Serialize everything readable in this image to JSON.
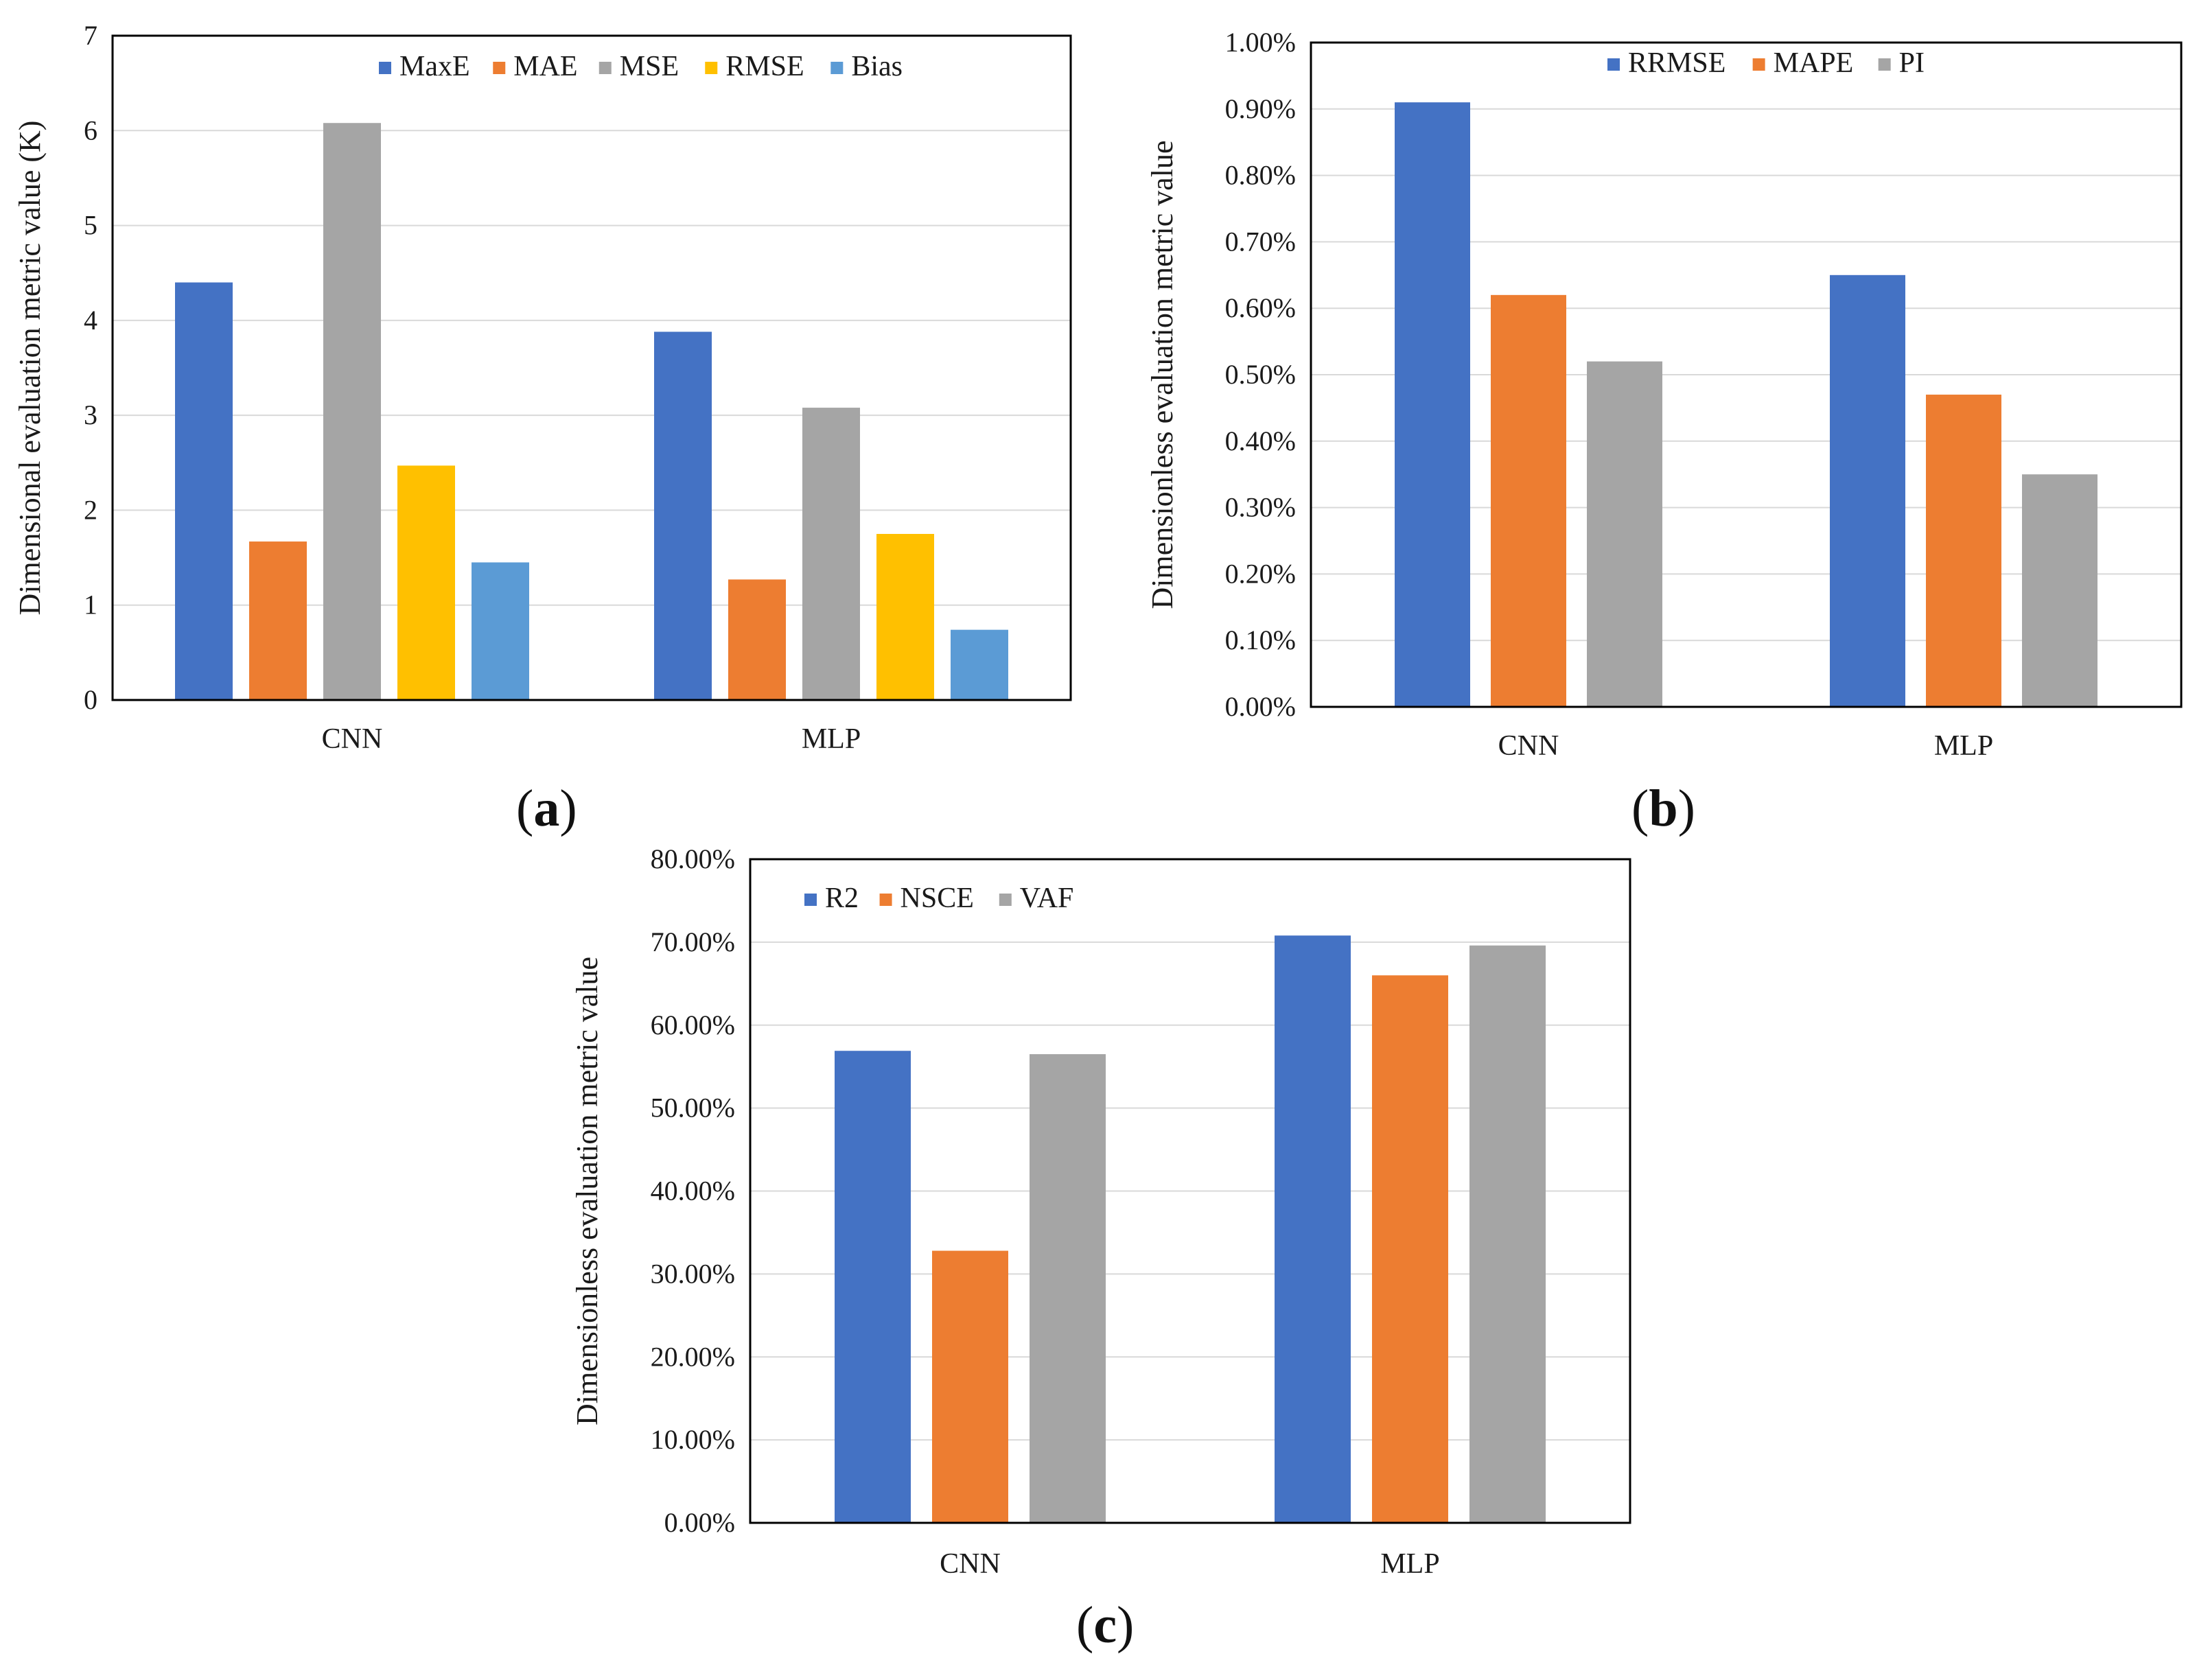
{
  "figure": {
    "panels": [
      {
        "id": "a",
        "caption_open": "(",
        "caption_letter": "a",
        "caption_close": ")"
      },
      {
        "id": "b",
        "caption_open": "(",
        "caption_letter": "b",
        "caption_close": ")"
      },
      {
        "id": "c",
        "caption_open": "(",
        "caption_letter": "c",
        "caption_close": ")"
      }
    ]
  },
  "chart_data": [
    {
      "panel": "a",
      "type": "bar",
      "title": "",
      "xlabel": "",
      "ylabel": "Dimensional evaluation metric value (K)",
      "categories": [
        "CNN",
        "MLP"
      ],
      "series": [
        {
          "name": "MaxE",
          "color": "#4472C4",
          "values": [
            4.4,
            3.88
          ]
        },
        {
          "name": "MAE",
          "color": "#ED7D31",
          "values": [
            1.67,
            1.27
          ]
        },
        {
          "name": "MSE",
          "color": "#A5A5A5",
          "values": [
            6.08,
            3.08
          ]
        },
        {
          "name": "RMSE",
          "color": "#FFC000",
          "values": [
            2.47,
            1.75
          ]
        },
        {
          "name": "Bias",
          "color": "#5B9BD5",
          "values": [
            1.45,
            0.74
          ]
        }
      ],
      "ylim": [
        0,
        7
      ],
      "yticks": [
        0,
        1,
        2,
        3,
        4,
        5,
        6,
        7
      ],
      "ytick_labels": [
        "0",
        "1",
        "2",
        "3",
        "4",
        "5",
        "6",
        "7"
      ],
      "grid": true,
      "legend": "top-center"
    },
    {
      "panel": "b",
      "type": "bar",
      "title": "",
      "xlabel": "",
      "ylabel": "Dimensionless evaluation metric value",
      "categories": [
        "CNN",
        "MLP"
      ],
      "series": [
        {
          "name": "RRMSE",
          "color": "#4472C4",
          "values": [
            0.91,
            0.65
          ]
        },
        {
          "name": "MAPE",
          "color": "#ED7D31",
          "values": [
            0.62,
            0.47
          ]
        },
        {
          "name": "PI",
          "color": "#A5A5A5",
          "values": [
            0.52,
            0.35
          ]
        }
      ],
      "value_unit": "percent",
      "ylim": [
        0,
        1.0
      ],
      "yticks": [
        0,
        0.1,
        0.2,
        0.3,
        0.4,
        0.5,
        0.6,
        0.7,
        0.8,
        0.9,
        1.0
      ],
      "ytick_labels": [
        "0.00%",
        "0.10%",
        "0.20%",
        "0.30%",
        "0.40%",
        "0.50%",
        "0.60%",
        "0.70%",
        "0.80%",
        "0.90%",
        "1.00%"
      ],
      "grid": true,
      "legend": "top-center"
    },
    {
      "panel": "c",
      "type": "bar",
      "title": "",
      "xlabel": "",
      "ylabel": "Dimensionless evaluation metric value",
      "categories": [
        "CNN",
        "MLP"
      ],
      "series": [
        {
          "name": "R2",
          "color": "#4472C4",
          "values": [
            56.9,
            70.8
          ]
        },
        {
          "name": "NSCE",
          "color": "#ED7D31",
          "values": [
            32.8,
            66.0
          ]
        },
        {
          "name": "VAF",
          "color": "#A5A5A5",
          "values": [
            56.5,
            69.6
          ]
        }
      ],
      "value_unit": "percent",
      "ylim": [
        0,
        80
      ],
      "yticks": [
        0,
        10,
        20,
        30,
        40,
        50,
        60,
        70,
        80
      ],
      "ytick_labels": [
        "0.00%",
        "10.00%",
        "20.00%",
        "30.00%",
        "40.00%",
        "50.00%",
        "60.00%",
        "70.00%",
        "80.00%"
      ],
      "grid": true,
      "legend": "top-left"
    }
  ]
}
